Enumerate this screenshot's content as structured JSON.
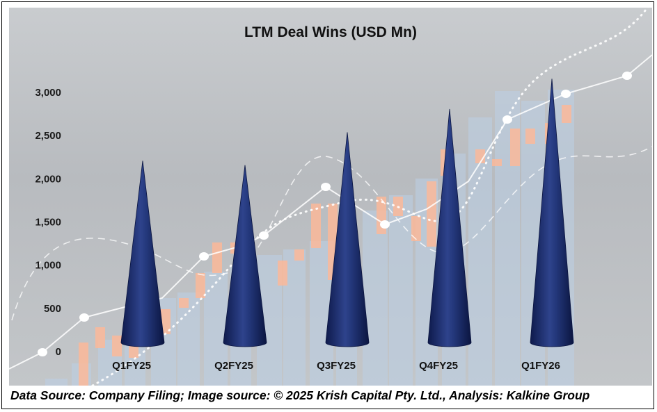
{
  "chart_data": {
    "type": "bar",
    "title": "LTM Deal Wins (USD Mn)",
    "xlabel": "",
    "ylabel": "",
    "categories": [
      "Q1FY25",
      "Q2FY25",
      "Q3FY25",
      "Q4FY25",
      "Q1FY26"
    ],
    "series": [
      {
        "name": "LTM Deal Wins",
        "values": [
          2200,
          2150,
          2530,
          2800,
          3150
        ]
      }
    ],
    "y_ticks": [
      0,
      500,
      1000,
      1500,
      2000,
      2500,
      3000
    ],
    "y_tick_labels": [
      "0",
      "500",
      "1,000",
      "1,500",
      "2,000",
      "2,500",
      "3,000"
    ],
    "ylim": [
      -400,
      3400
    ],
    "grid": false,
    "marker_style": "cone",
    "colors": {
      "cone": "#1b2d6b",
      "cone_highlight": "#3a4f98",
      "cone_shadow": "#0b1540",
      "deco_bar": "#bcd0e6",
      "deco_candle": "#ffb896",
      "deco_line": "#ffffff",
      "background": "#bfc2c5"
    }
  },
  "footer": {
    "text": "Data Source: Company Filing; Image source: © 2025 Krish Capital Pty. Ltd., Analysis: Kalkine Group"
  }
}
